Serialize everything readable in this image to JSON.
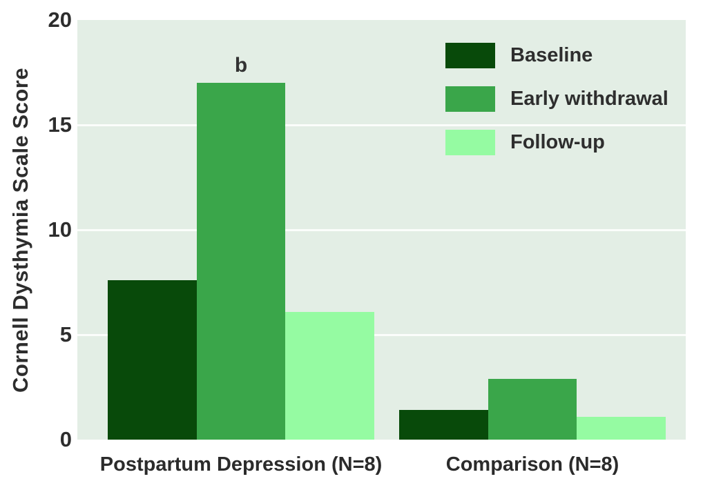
{
  "figure": {
    "background": "#ffffff",
    "plot_background": "#e3eee5",
    "gridline_color": "#fbfdfb",
    "text_color": "#2d2d2d"
  },
  "chart_data": {
    "type": "bar",
    "title": "",
    "xlabel": "",
    "ylabel": "Cornell Dysthymia Scale Score",
    "ylim": [
      0,
      20
    ],
    "yticks": [
      0,
      5,
      10,
      15,
      20
    ],
    "grid": "horizontal white gridlines at 5, 10, 15",
    "legend_position": "top-right inside plot area",
    "categories": [
      "Postpartum Depression (N=8)",
      "Comparison (N=8)"
    ],
    "series": [
      {
        "name": "Baseline",
        "color": "#084a0a",
        "values": [
          7.6,
          1.4
        ]
      },
      {
        "name": "Early withdrawal",
        "color": "#3aa64a",
        "values": [
          17,
          2.9
        ]
      },
      {
        "name": "Follow-up",
        "color": "#95fba2",
        "values": [
          6.1,
          1.1
        ]
      }
    ],
    "annotations": [
      {
        "text": "b",
        "category_index": 0,
        "series_index": 1,
        "placement": "above-bar"
      }
    ]
  }
}
